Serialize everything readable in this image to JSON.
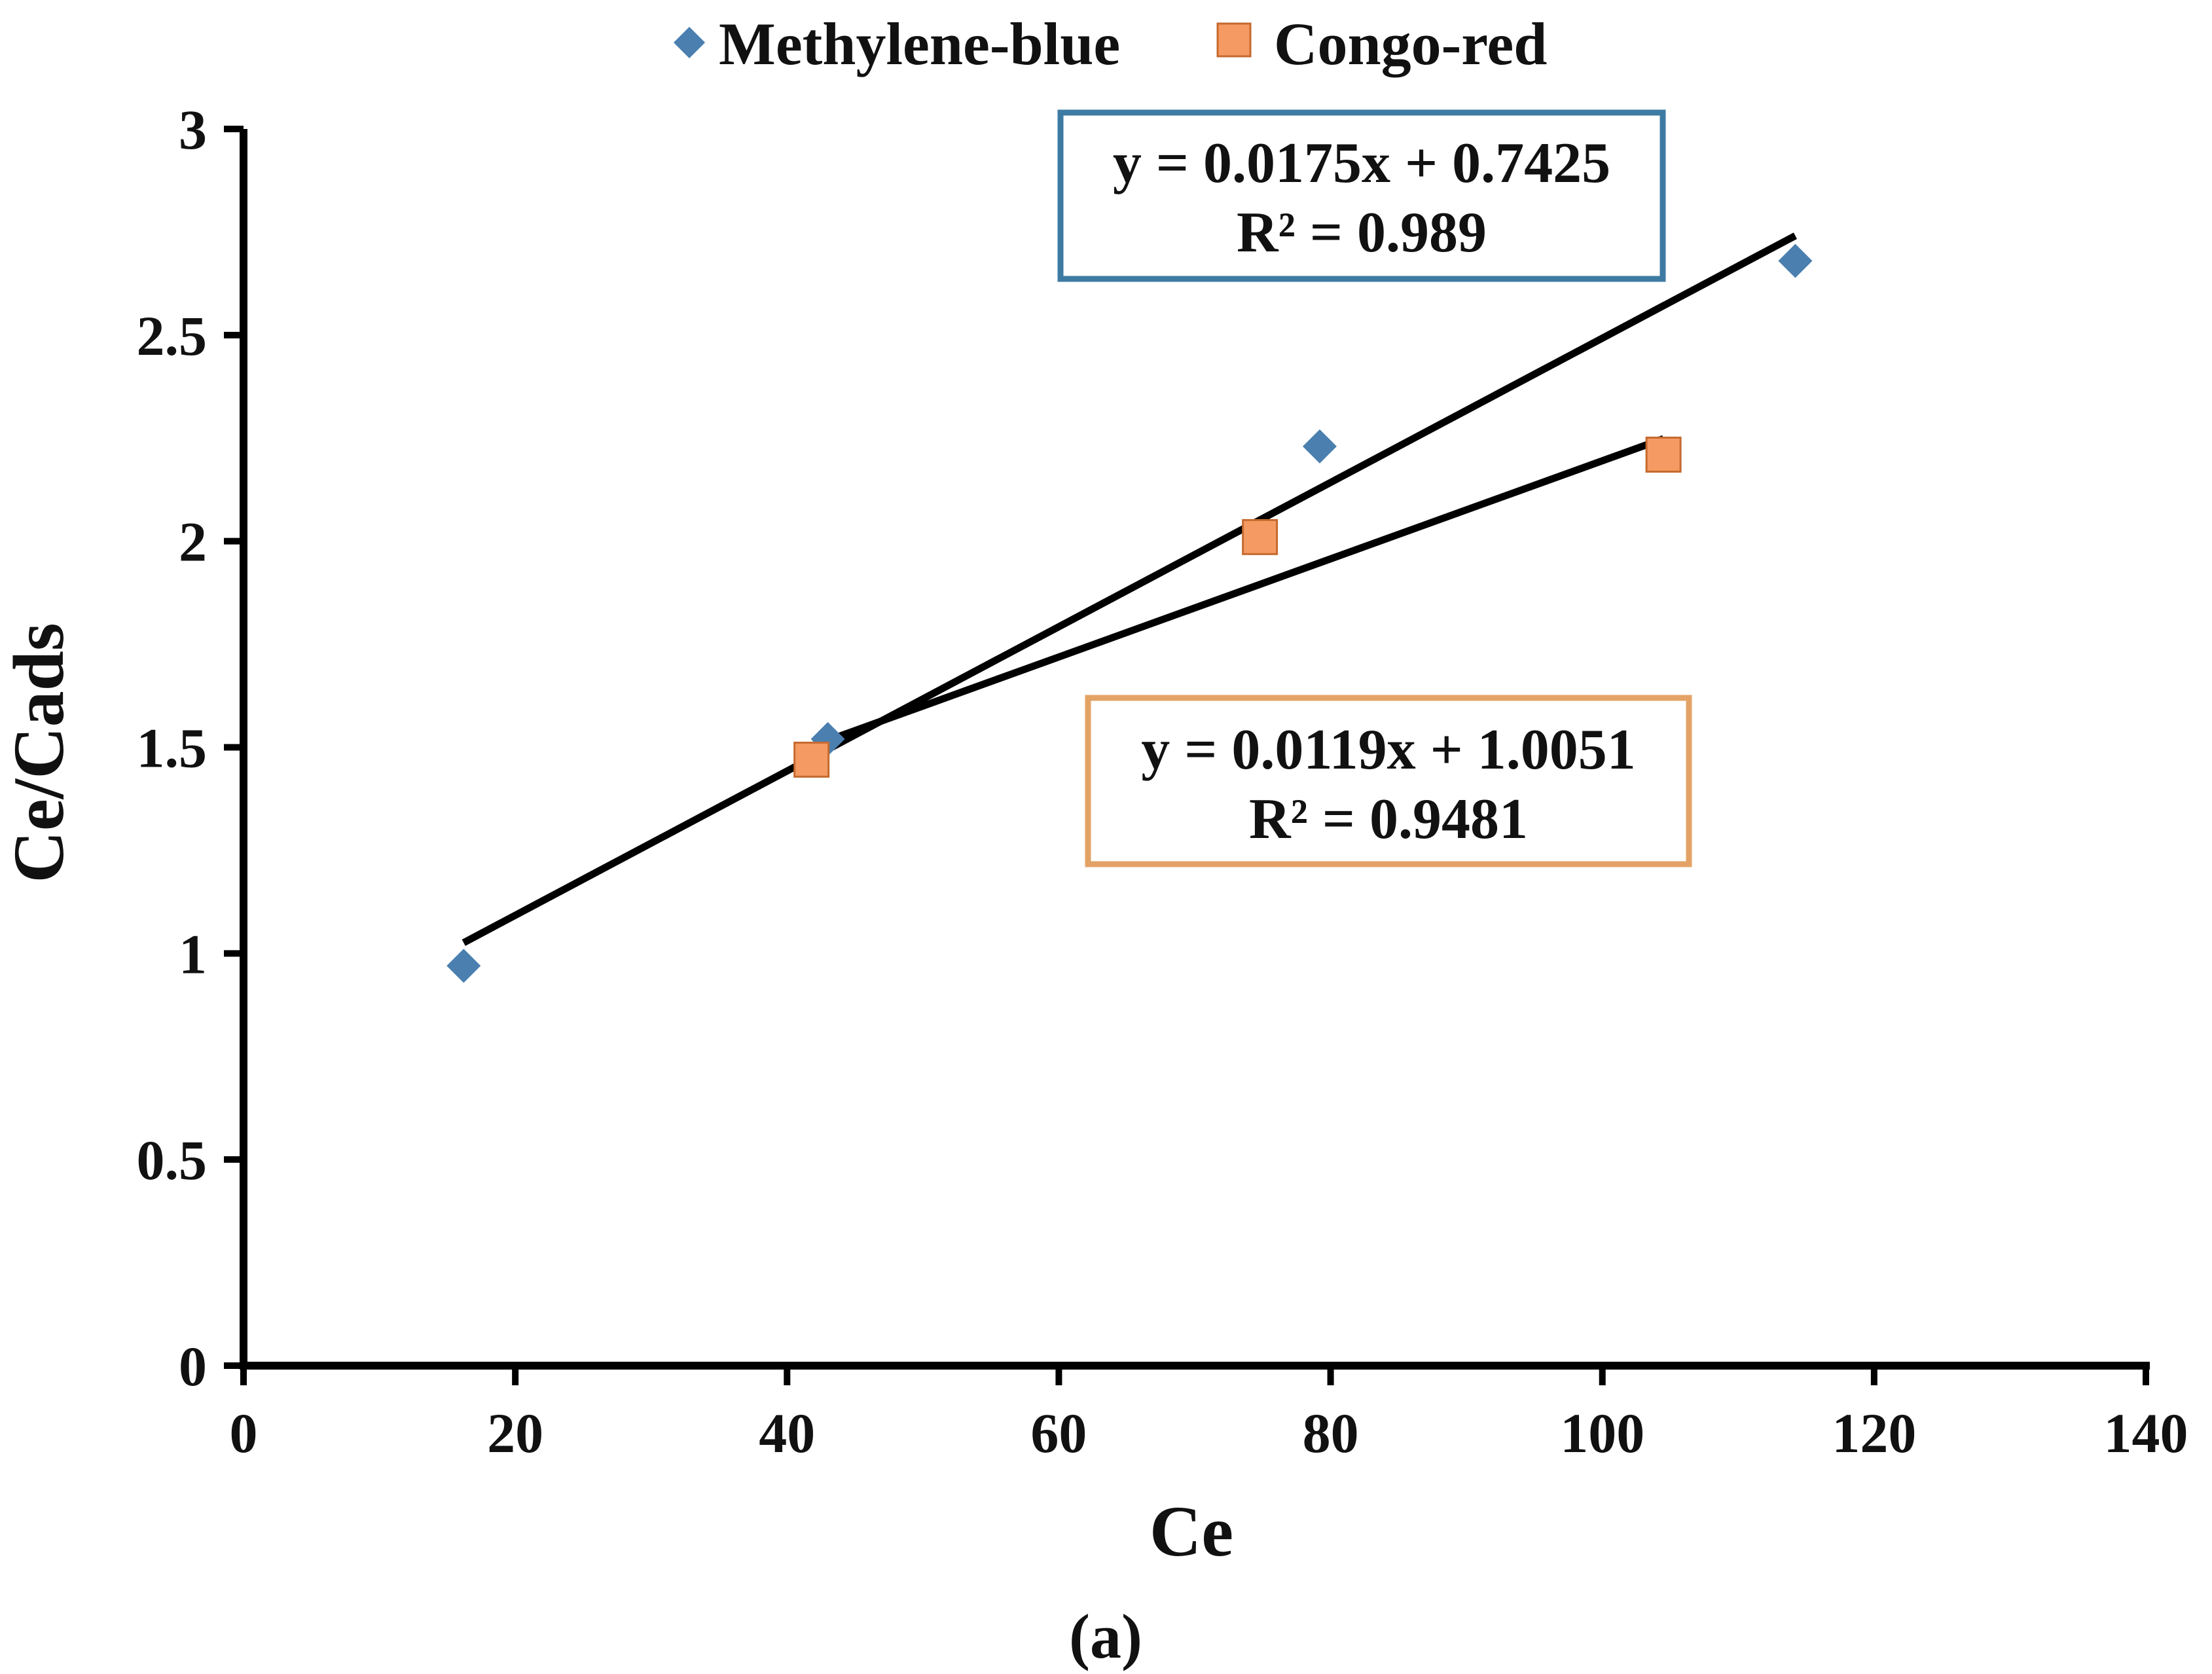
{
  "chart_data": {
    "type": "scatter",
    "xlabel": "Ce",
    "ylabel": "Ce/Cads",
    "xlim": [
      0,
      140
    ],
    "ylim": [
      0,
      3
    ],
    "x_ticks": [
      "0",
      "20",
      "40",
      "60",
      "80",
      "100",
      "120",
      "140"
    ],
    "y_ticks": [
      "0",
      "0.5",
      "1",
      "1.5",
      "2",
      "2.5",
      "3"
    ],
    "grid": false,
    "legend_position": "top-center",
    "series": [
      {
        "name": "Methylene-blue",
        "marker": "diamond",
        "color": "#4A7FB0",
        "x": [
          16.2,
          43.0,
          79.2,
          114.2
        ],
        "y": [
          0.97,
          1.52,
          2.23,
          2.68
        ],
        "trendline": {
          "slope": 0.0175,
          "intercept": 0.7425,
          "x_range": [
            16.2,
            114.2
          ],
          "equation": "y = 0.0175x + 0.7425",
          "r2": "R² = 0.989",
          "box_color": "#3E7BA3"
        }
      },
      {
        "name": "Congo-red",
        "marker": "square",
        "color": "#F59A62",
        "x": [
          41.8,
          74.8,
          104.5
        ],
        "y": [
          1.47,
          2.01,
          2.21
        ],
        "trendline": {
          "slope": 0.0119,
          "intercept": 1.0051,
          "x_range": [
            41.8,
            104.5
          ],
          "equation": "y = 0.0119x + 1.0051",
          "r2": "R² = 0.9481",
          "box_color": "#E3A366"
        }
      }
    ]
  },
  "caption": {
    "open": "(",
    "letter": "a",
    "close": ")"
  }
}
